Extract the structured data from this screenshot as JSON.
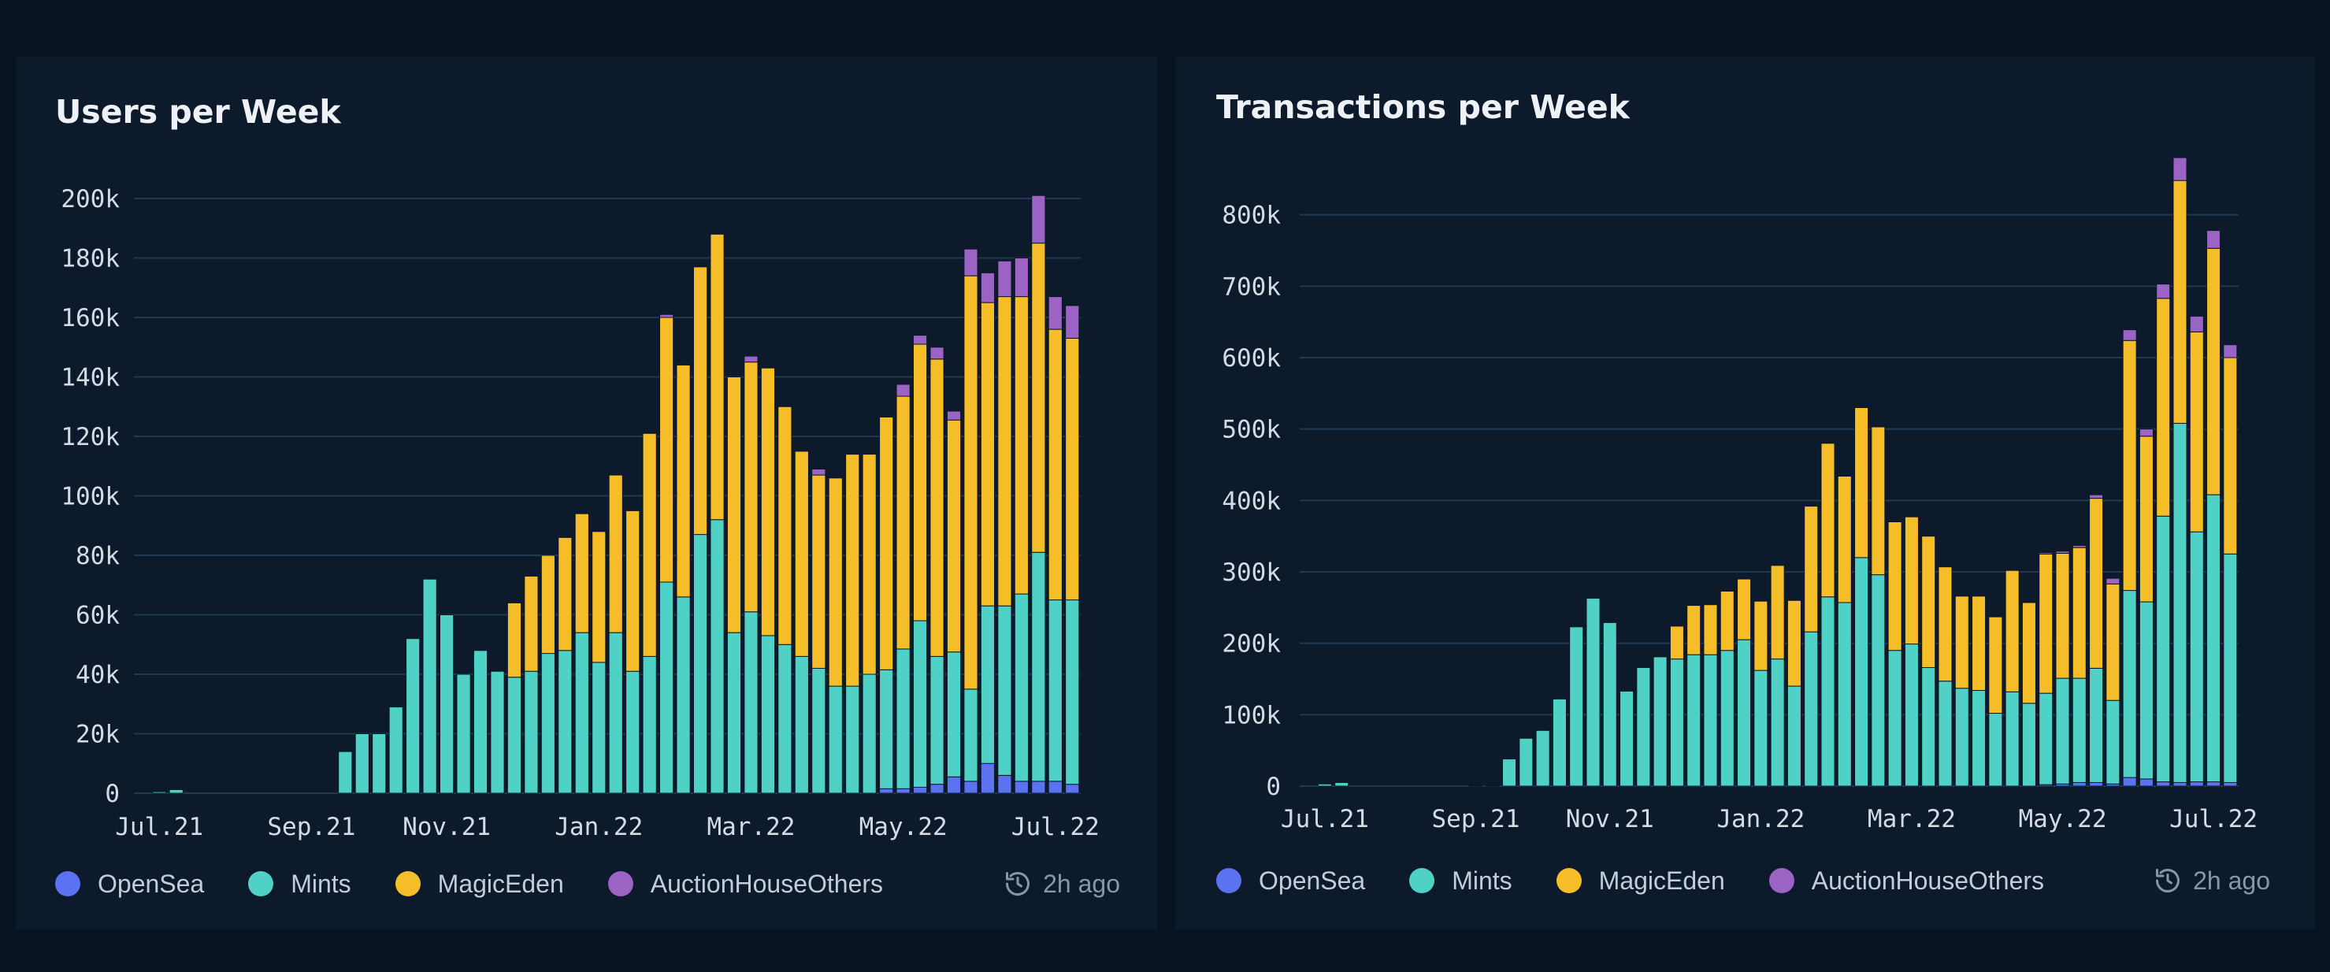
{
  "colors": {
    "background": "#071320",
    "panel": "#0c1a2c",
    "grid": "#1f3a52",
    "axis_text": "#d4dbe5",
    "OpenSea": "#5b73f0",
    "Mints": "#4fd1c5",
    "MagicEden": "#f5bd28",
    "AuctionHouseOthers": "#9b64c4"
  },
  "legend": [
    {
      "key": "OpenSea",
      "label": "OpenSea"
    },
    {
      "key": "Mints",
      "label": "Mints"
    },
    {
      "key": "MagicEden",
      "label": "MagicEden"
    },
    {
      "key": "AuctionHouseOthers",
      "label": "AuctionHouseOthers"
    }
  ],
  "updated_text": "2h ago",
  "chart_data": [
    {
      "type": "bar",
      "stacked": true,
      "title": "Users per Week",
      "ylim": [
        0,
        200000
      ],
      "yticks": [
        0,
        20000,
        40000,
        60000,
        80000,
        100000,
        120000,
        140000,
        160000,
        180000,
        200000
      ],
      "ytick_labels": [
        "0",
        "20k",
        "40k",
        "60k",
        "80k",
        "100k",
        "120k",
        "140k",
        "160k",
        "180k",
        "200k"
      ],
      "xtick_labels": [
        {
          "label": "Jul.21",
          "index": 1
        },
        {
          "label": "Sep.21",
          "index": 10
        },
        {
          "label": "Nov.21",
          "index": 18
        },
        {
          "label": "Jan.22",
          "index": 27
        },
        {
          "label": "Mar.22",
          "index": 36
        },
        {
          "label": "May.22",
          "index": 45
        },
        {
          "label": "Jul.22",
          "index": 54
        }
      ],
      "x_count": 56,
      "series": [
        {
          "name": "OpenSea",
          "values": [
            0,
            0,
            0,
            0,
            0,
            0,
            0,
            0,
            0,
            0,
            0,
            0,
            0,
            0,
            0,
            0,
            0,
            0,
            0,
            0,
            0,
            0,
            0,
            0,
            0,
            0,
            0,
            0,
            0,
            0,
            0,
            0,
            0,
            0,
            0,
            0,
            0,
            0,
            0,
            0,
            0,
            0,
            0,
            0,
            1500,
            1500,
            2000,
            3000,
            5500,
            4000,
            10000,
            6000,
            4000,
            4000,
            4000,
            3000
          ]
        },
        {
          "name": "Mints",
          "values": [
            0,
            500,
            1200,
            0,
            0,
            0,
            0,
            0,
            0,
            0,
            0,
            0,
            14000,
            20000,
            20000,
            29000,
            52000,
            72000,
            60000,
            40000,
            48000,
            41000,
            39000,
            41000,
            47000,
            48000,
            54000,
            44000,
            54000,
            41000,
            46000,
            71000,
            66000,
            87000,
            92000,
            54000,
            61000,
            53000,
            50000,
            46000,
            42000,
            36000,
            36000,
            40000,
            40000,
            47000,
            56000,
            43000,
            42000,
            31000,
            53000,
            57000,
            63000,
            77000,
            61000,
            62000
          ]
        },
        {
          "name": "MagicEden",
          "values": [
            0,
            0,
            0,
            0,
            0,
            0,
            0,
            0,
            0,
            0,
            0,
            0,
            0,
            0,
            0,
            0,
            0,
            0,
            0,
            0,
            0,
            0,
            25000,
            32000,
            33000,
            38000,
            40000,
            44000,
            53000,
            54000,
            75000,
            89000,
            78000,
            90000,
            96000,
            86000,
            84000,
            90000,
            80000,
            69000,
            65000,
            70000,
            78000,
            74000,
            85000,
            85000,
            93000,
            100000,
            78000,
            139000,
            102000,
            104000,
            100000,
            104000,
            91000,
            88000
          ]
        },
        {
          "name": "AuctionHouseOthers",
          "values": [
            0,
            0,
            0,
            0,
            0,
            0,
            0,
            0,
            0,
            0,
            0,
            0,
            0,
            0,
            0,
            0,
            0,
            0,
            0,
            0,
            0,
            0,
            0,
            0,
            0,
            0,
            0,
            0,
            0,
            0,
            0,
            1000,
            0,
            0,
            0,
            0,
            2000,
            0,
            0,
            0,
            2000,
            0,
            0,
            0,
            0,
            4000,
            3000,
            4000,
            3000,
            9000,
            10000,
            12000,
            13000,
            16000,
            11000,
            11000
          ]
        }
      ]
    },
    {
      "type": "bar",
      "stacked": true,
      "title": "Transactions per Week",
      "ylim": [
        0,
        900000
      ],
      "yticks": [
        0,
        100000,
        200000,
        300000,
        400000,
        500000,
        600000,
        700000,
        800000
      ],
      "ytick_labels": [
        "0",
        "100k",
        "200k",
        "300k",
        "400k",
        "500k",
        "600k",
        "700k",
        "800k"
      ],
      "xtick_labels": [
        {
          "label": "Jul.21",
          "index": 1
        },
        {
          "label": "Sep.21",
          "index": 10
        },
        {
          "label": "Nov.21",
          "index": 18
        },
        {
          "label": "Jan.22",
          "index": 27
        },
        {
          "label": "Mar.22",
          "index": 36
        },
        {
          "label": "May.22",
          "index": 45
        },
        {
          "label": "Jul.22",
          "index": 54
        }
      ],
      "x_count": 56,
      "series": [
        {
          "name": "OpenSea",
          "values": [
            0,
            0,
            0,
            0,
            0,
            0,
            0,
            0,
            0,
            0,
            0,
            0,
            0,
            0,
            0,
            0,
            0,
            0,
            0,
            0,
            0,
            0,
            0,
            0,
            0,
            0,
            0,
            0,
            0,
            0,
            0,
            0,
            0,
            0,
            0,
            0,
            0,
            0,
            0,
            0,
            0,
            0,
            0,
            0,
            2000,
            3000,
            5000,
            5000,
            3000,
            12000,
            10000,
            6000,
            5000,
            6000,
            6000,
            5000
          ]
        },
        {
          "name": "Mints",
          "values": [
            0,
            3000,
            5000,
            0,
            0,
            0,
            0,
            0,
            0,
            0,
            1000,
            1000,
            38000,
            67000,
            78000,
            122000,
            223000,
            263000,
            229000,
            133000,
            166000,
            181000,
            178000,
            184000,
            184000,
            190000,
            205000,
            162000,
            178000,
            140000,
            216000,
            265000,
            257000,
            320000,
            296000,
            190000,
            199000,
            166000,
            147000,
            137000,
            134000,
            102000,
            132000,
            116000,
            128000,
            148000,
            146000,
            160000,
            117000,
            262000,
            248000,
            372000,
            503000,
            350000,
            402000,
            320000
          ]
        },
        {
          "name": "MagicEden",
          "values": [
            0,
            0,
            0,
            0,
            0,
            0,
            0,
            0,
            0,
            0,
            0,
            0,
            0,
            0,
            0,
            0,
            0,
            0,
            0,
            0,
            0,
            0,
            46000,
            69000,
            70000,
            83000,
            85000,
            97000,
            131000,
            120000,
            176000,
            215000,
            177000,
            210000,
            207000,
            180000,
            178000,
            184000,
            160000,
            129000,
            132000,
            135000,
            170000,
            141000,
            195000,
            175000,
            183000,
            238000,
            163000,
            350000,
            232000,
            305000,
            340000,
            280000,
            345000,
            275000
          ]
        },
        {
          "name": "AuctionHouseOthers",
          "values": [
            0,
            0,
            0,
            0,
            0,
            0,
            0,
            0,
            0,
            0,
            0,
            0,
            0,
            0,
            0,
            0,
            0,
            0,
            0,
            0,
            0,
            0,
            0,
            0,
            0,
            0,
            0,
            0,
            0,
            0,
            0,
            0,
            0,
            0,
            0,
            0,
            0,
            0,
            0,
            0,
            0,
            0,
            0,
            0,
            2000,
            3000,
            3000,
            5000,
            8000,
            15000,
            10000,
            20000,
            32000,
            22000,
            25000,
            18000
          ]
        }
      ]
    }
  ]
}
